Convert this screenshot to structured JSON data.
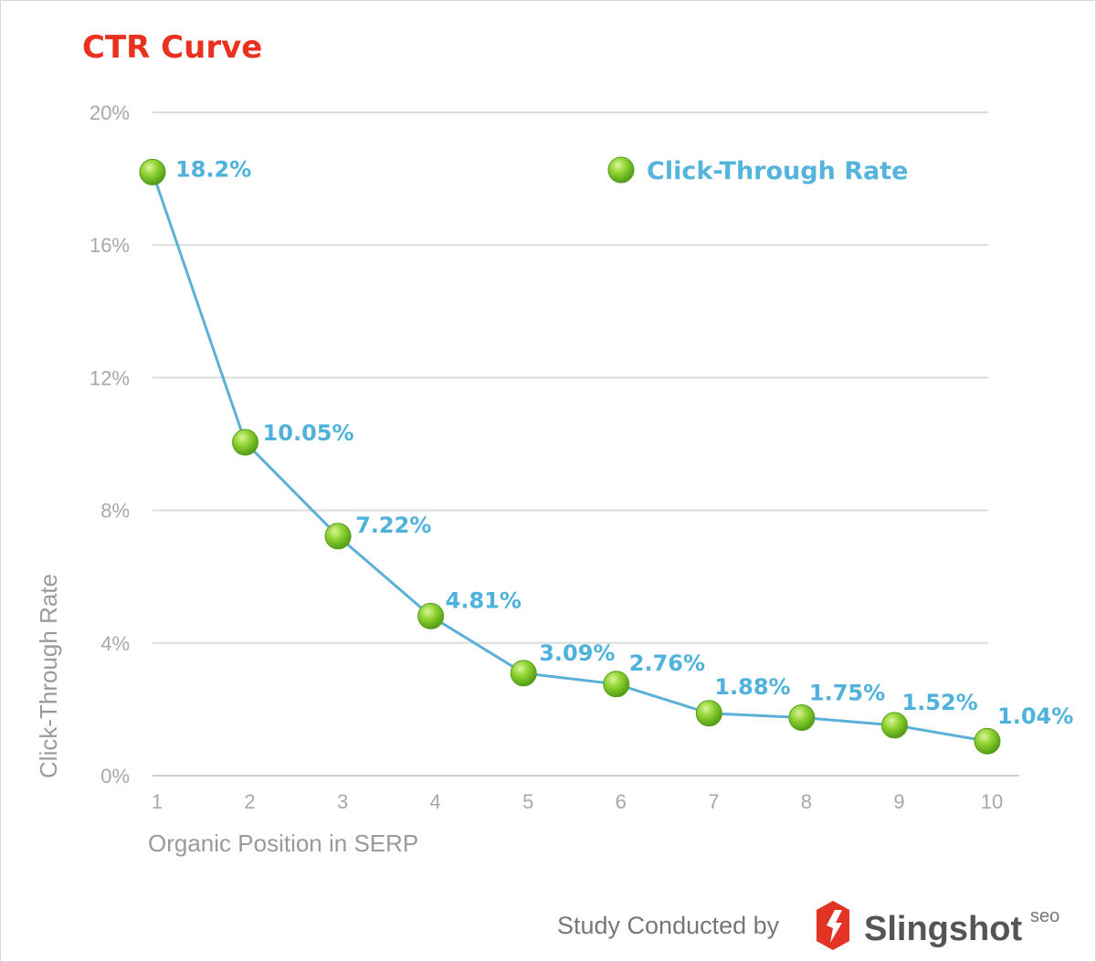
{
  "chart_data": {
    "type": "line",
    "title": "CTR Curve",
    "xlabel": "Organic Position in SERP",
    "ylabel": "Click-Through Rate",
    "x": [
      1,
      2,
      3,
      4,
      5,
      6,
      7,
      8,
      9,
      10
    ],
    "x_tick_labels": [
      "1",
      "2",
      "3",
      "4",
      "5",
      "6",
      "7",
      "8",
      "9",
      "10"
    ],
    "y_tick_labels": [
      "0%",
      "4%",
      "8%",
      "12%",
      "16%",
      "20%"
    ],
    "y_ticks": [
      0,
      4,
      8,
      12,
      16,
      20
    ],
    "ylim": [
      0,
      20
    ],
    "xlim": [
      1,
      10
    ],
    "grid": true,
    "legend_placement": "top-right",
    "series": [
      {
        "name": "Click-Through Rate",
        "values": [
          18.2,
          10.05,
          7.22,
          4.81,
          3.09,
          2.76,
          1.88,
          1.75,
          1.52,
          1.04
        ],
        "data_labels": [
          "18.2%",
          "10.05%",
          "7.22%",
          "4.81%",
          "3.09%",
          "2.76%",
          "1.88%",
          "1.75%",
          "1.52%",
          "1.04%"
        ]
      }
    ]
  },
  "footer": {
    "credit": "Study Conducted by",
    "brand": "Slingshot",
    "brand_suffix": "seo"
  },
  "colors": {
    "title": "#e8321e",
    "line": "#5ab0d8",
    "marker": "#7cc52a",
    "label": "#4fb2dc",
    "grid": "#dcdcdc"
  }
}
